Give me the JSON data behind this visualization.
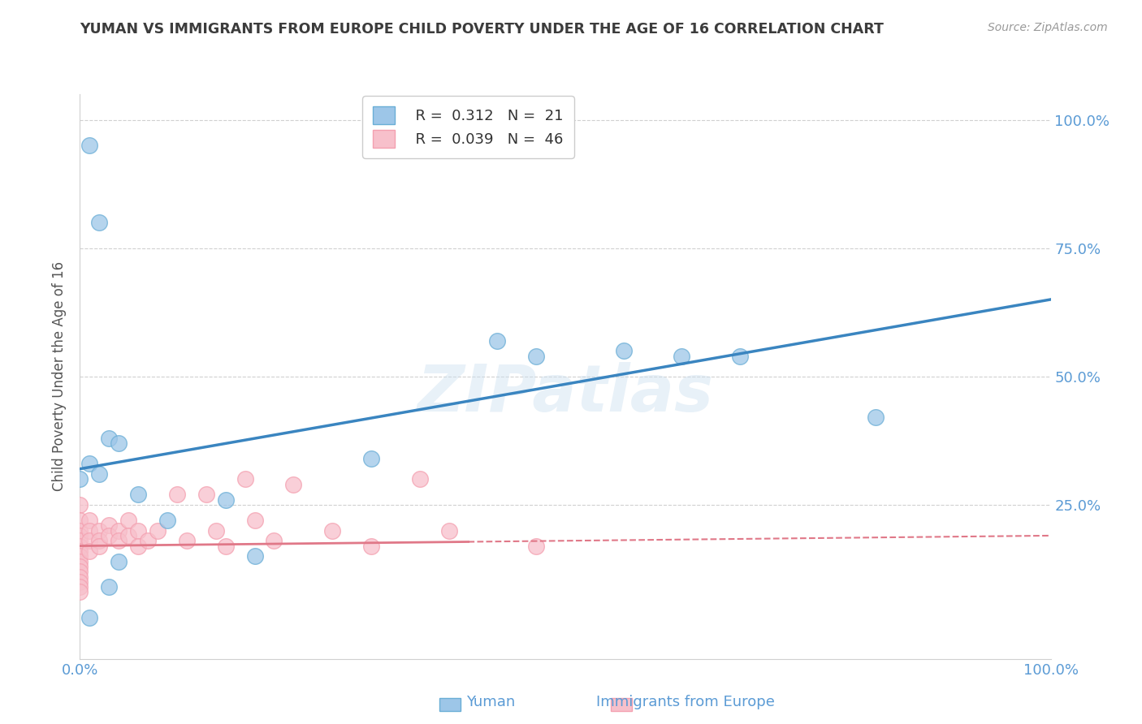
{
  "title": "YUMAN VS IMMIGRANTS FROM EUROPE CHILD POVERTY UNDER THE AGE OF 16 CORRELATION CHART",
  "source": "Source: ZipAtlas.com",
  "ylabel": "Child Poverty Under the Age of 16",
  "watermark": "ZIPatlas",
  "legend": {
    "blue_label": "Yuman",
    "pink_label": "Immigrants from Europe",
    "blue_R": "R =  0.312",
    "blue_N": "N =  21",
    "pink_R": "R =  0.039",
    "pink_N": "N =  46"
  },
  "xlim": [
    0,
    100
  ],
  "ylim": [
    -5,
    105
  ],
  "blue_scatter": [
    [
      1,
      95
    ],
    [
      2,
      80
    ],
    [
      3,
      38
    ],
    [
      4,
      37
    ],
    [
      1,
      33
    ],
    [
      2,
      31
    ],
    [
      0,
      30
    ],
    [
      6,
      27
    ],
    [
      43,
      57
    ],
    [
      47,
      54
    ],
    [
      56,
      55
    ],
    [
      62,
      54
    ],
    [
      68,
      54
    ],
    [
      82,
      42
    ],
    [
      30,
      34
    ],
    [
      9,
      22
    ],
    [
      15,
      26
    ],
    [
      18,
      15
    ],
    [
      4,
      14
    ],
    [
      3,
      9
    ],
    [
      1,
      3
    ]
  ],
  "pink_scatter": [
    [
      0,
      25
    ],
    [
      0,
      22
    ],
    [
      0,
      20
    ],
    [
      0,
      19
    ],
    [
      0,
      18
    ],
    [
      0,
      17
    ],
    [
      0,
      16
    ],
    [
      0,
      15
    ],
    [
      0,
      14
    ],
    [
      0,
      13
    ],
    [
      0,
      12
    ],
    [
      0,
      11
    ],
    [
      0,
      10
    ],
    [
      0,
      9
    ],
    [
      0,
      8
    ],
    [
      1,
      22
    ],
    [
      1,
      20
    ],
    [
      1,
      18
    ],
    [
      1,
      16
    ],
    [
      2,
      20
    ],
    [
      2,
      18
    ],
    [
      2,
      17
    ],
    [
      3,
      21
    ],
    [
      3,
      19
    ],
    [
      4,
      20
    ],
    [
      4,
      18
    ],
    [
      5,
      22
    ],
    [
      5,
      19
    ],
    [
      6,
      20
    ],
    [
      6,
      17
    ],
    [
      7,
      18
    ],
    [
      8,
      20
    ],
    [
      10,
      27
    ],
    [
      11,
      18
    ],
    [
      13,
      27
    ],
    [
      14,
      20
    ],
    [
      15,
      17
    ],
    [
      17,
      30
    ],
    [
      18,
      22
    ],
    [
      20,
      18
    ],
    [
      22,
      29
    ],
    [
      26,
      20
    ],
    [
      30,
      17
    ],
    [
      35,
      30
    ],
    [
      38,
      20
    ],
    [
      47,
      17
    ]
  ],
  "blue_line": [
    [
      0,
      32
    ],
    [
      100,
      65
    ]
  ],
  "pink_solid_line": [
    [
      0,
      17
    ],
    [
      40,
      17.8
    ]
  ],
  "pink_dashed_line": [
    [
      40,
      17.8
    ],
    [
      100,
      19
    ]
  ],
  "blue_color": "#9dc6e8",
  "blue_edge_color": "#6aaed6",
  "pink_color": "#f7c0cb",
  "pink_edge_color": "#f4a0b0",
  "blue_line_color": "#3a85c0",
  "pink_line_color": "#e07888",
  "grid_color": "#d0d0d0",
  "bg_color": "#ffffff",
  "title_color": "#3c3c3c",
  "tick_color": "#5b9bd5",
  "ylabel_color": "#555555"
}
